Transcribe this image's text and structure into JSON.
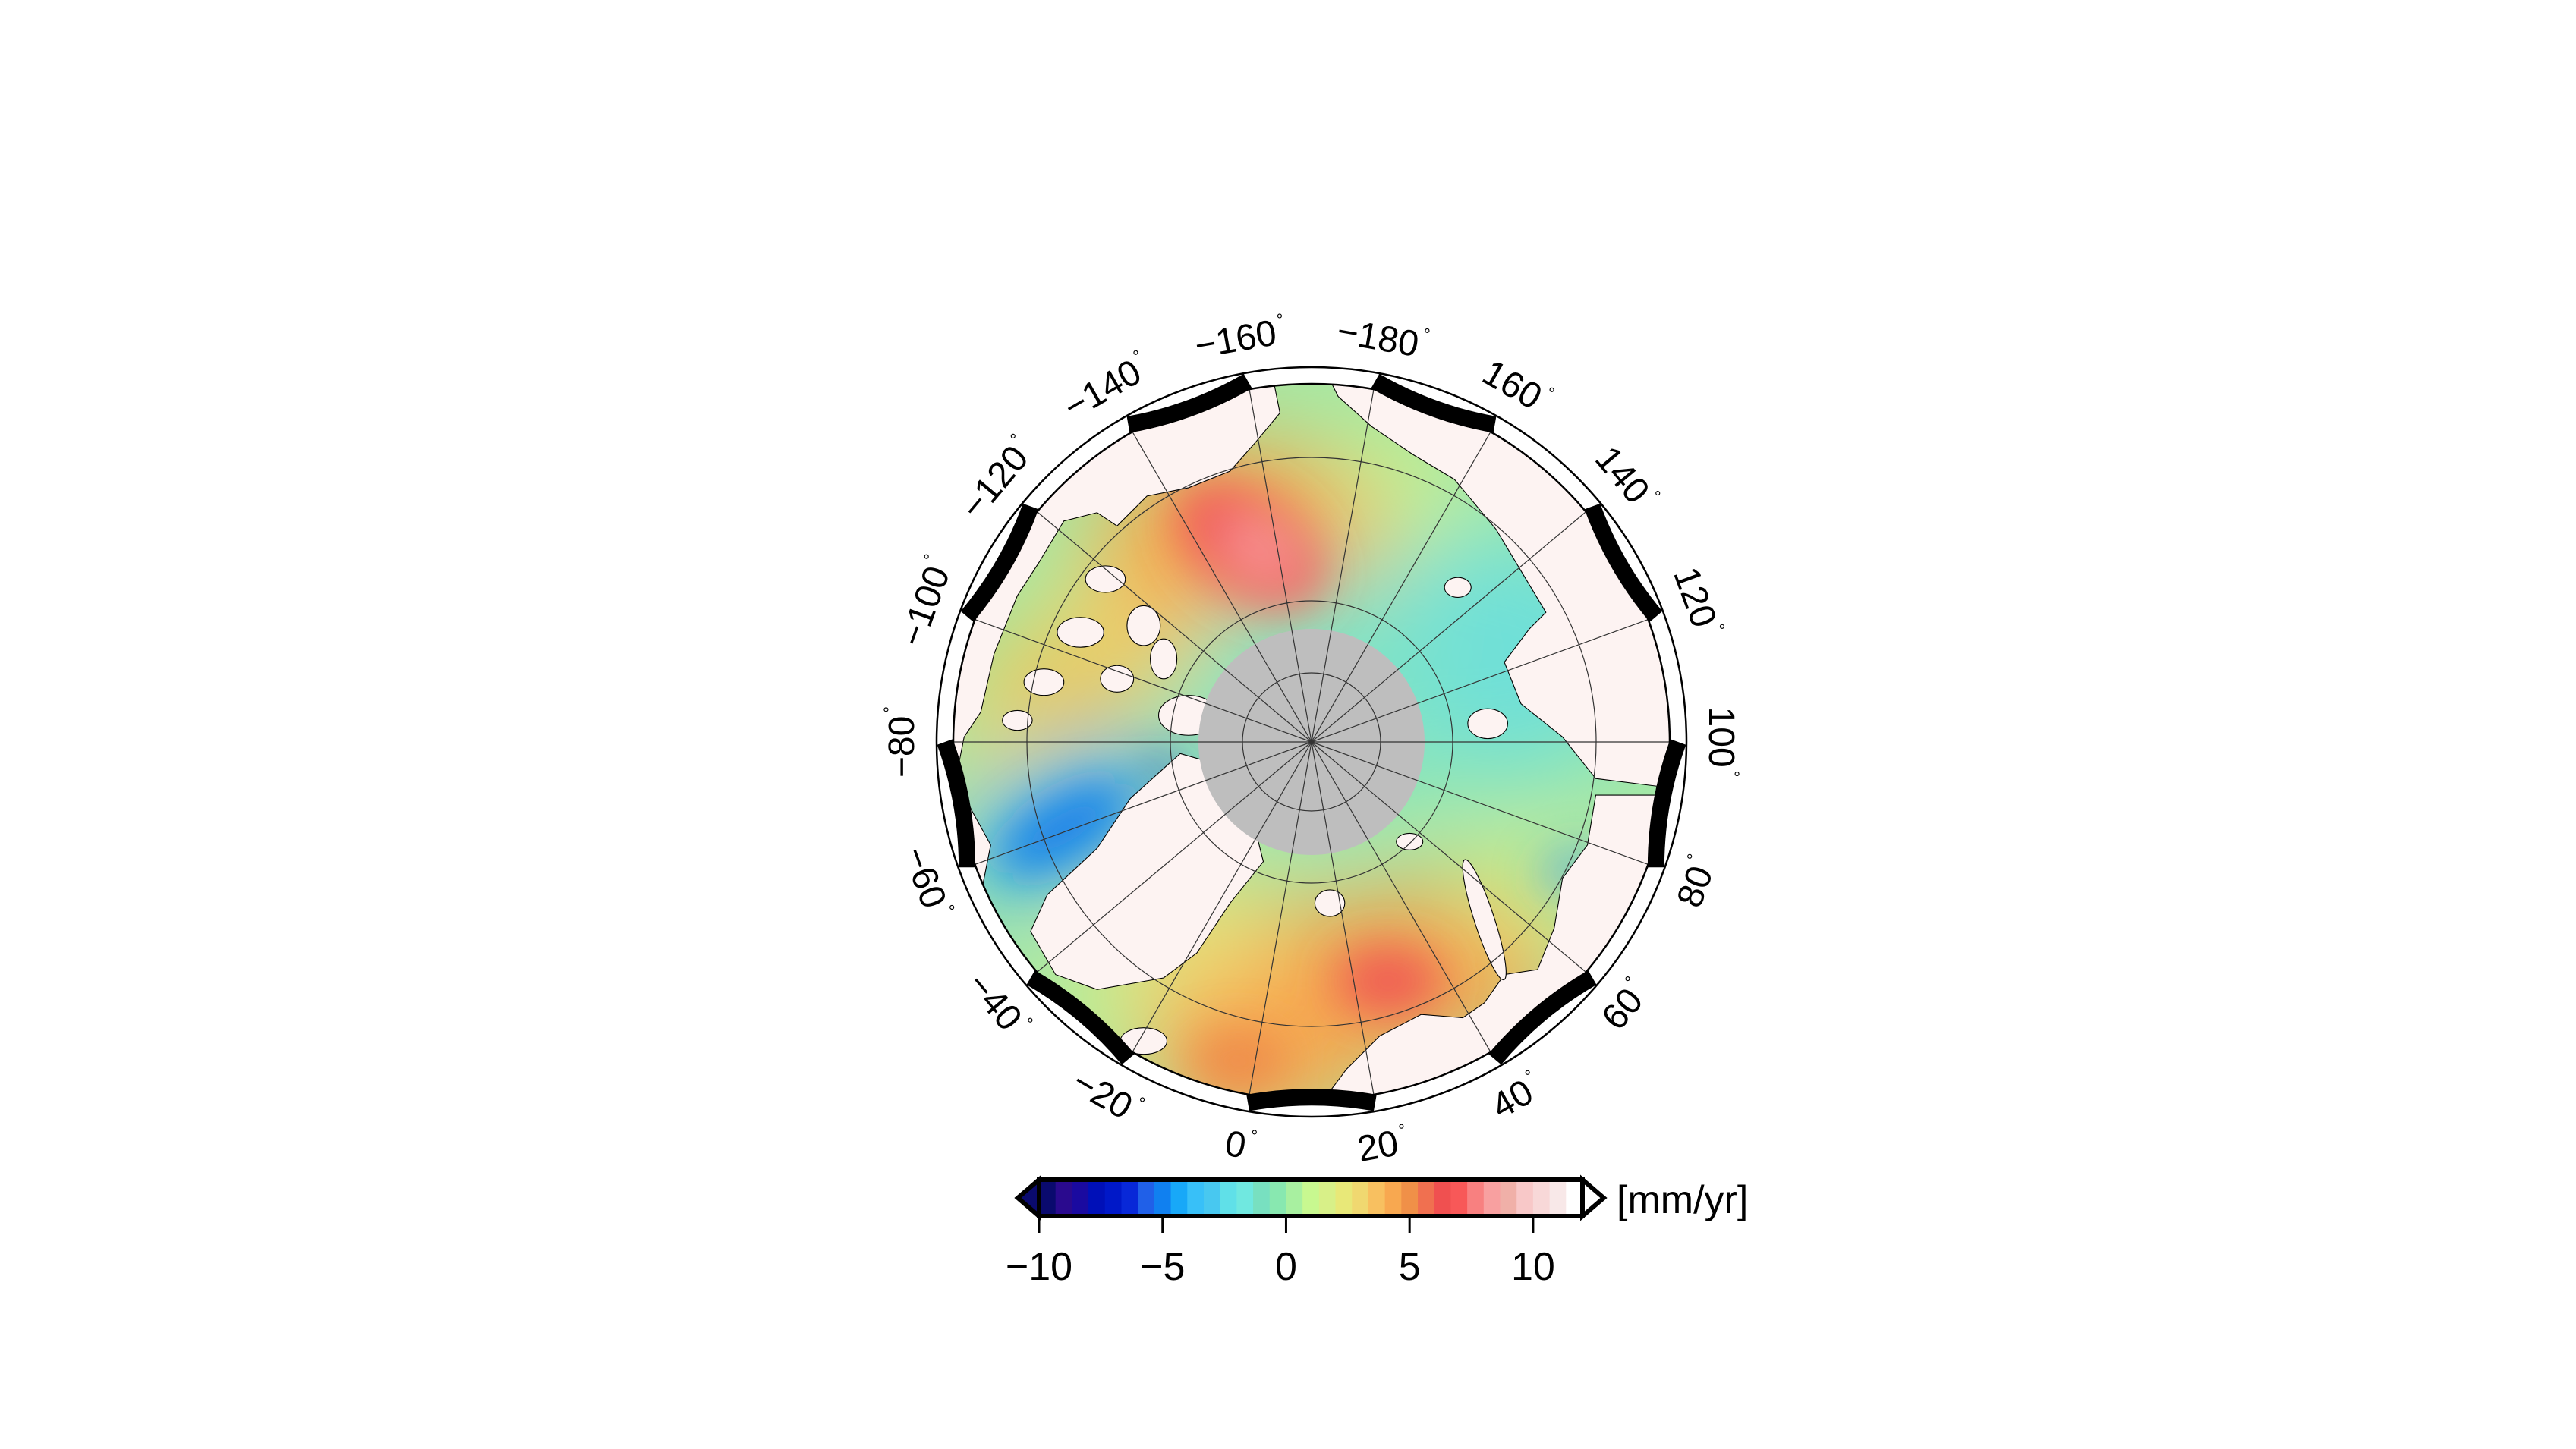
{
  "map": {
    "projection": "north-polar-stereographic",
    "longitude_labels": [
      "0",
      "20",
      "40",
      "60",
      "80",
      "100",
      "120",
      "140",
      "160",
      "−180",
      "−160",
      "−140",
      "−120",
      "−100",
      "−80",
      "−60",
      "−40",
      "−20"
    ],
    "degree_symbol": "°",
    "land_color": "#fdf3f2",
    "no_data_color": "#bebebe"
  },
  "colorbar": {
    "min": -10,
    "max": 12,
    "ticks": [
      "−10",
      "−5",
      "0",
      "5",
      "10"
    ],
    "tick_values": [
      -10,
      -5,
      0,
      5,
      10
    ],
    "unit_label": "[mm/yr]",
    "extend": "both",
    "colors": [
      "#0a0a6e",
      "#2a0a8e",
      "#1a0aa0",
      "#0010b8",
      "#0018c8",
      "#0828d8",
      "#2060e8",
      "#1080f0",
      "#18a8f8",
      "#38c0f8",
      "#48c8f0",
      "#60e0e8",
      "#70e8e0",
      "#78e0c0",
      "#88e8b0",
      "#a8f0a0",
      "#c8f890",
      "#d8f088",
      "#e8e878",
      "#f0d870",
      "#f8c060",
      "#f8a850",
      "#f09048",
      "#f07050",
      "#f05050",
      "#f85858",
      "#f88080",
      "#f8a0a0",
      "#f0b0a8",
      "#f8c8c8",
      "#f8d8d8",
      "#f8e8e8",
      "#ffffff"
    ]
  }
}
